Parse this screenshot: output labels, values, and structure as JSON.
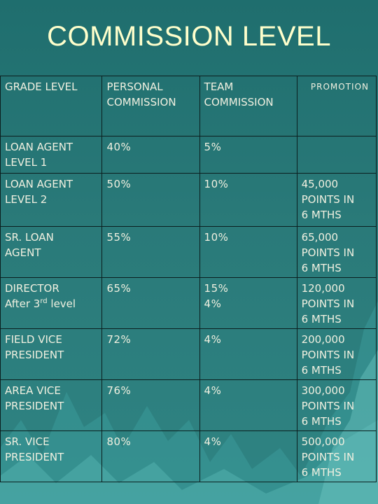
{
  "title": "COMMISSION LEVEL",
  "headers": {
    "grade": "GRADE LEVEL",
    "personal_1": "PERSONAL",
    "personal_2": "COMMISSION",
    "team_1": "TEAM",
    "team_2": "COMMISSION",
    "promotion": "PROMOTION"
  },
  "rows": [
    {
      "grade_1": "LOAN AGENT",
      "grade_2": "LEVEL 1",
      "personal": "40%",
      "team_1": "5%",
      "team_2": "",
      "promo_1": "",
      "promo_2": "",
      "promo_3": ""
    },
    {
      "grade_1": "LOAN AGENT",
      "grade_2": "LEVEL 2",
      "personal": "50%",
      "team_1": "10%",
      "team_2": "",
      "promo_1": "45,000",
      "promo_2": "POINTS IN",
      "promo_3": "6 MTHS"
    },
    {
      "grade_1": "SR. LOAN",
      "grade_2": "AGENT",
      "personal": "55%",
      "team_1": "10%",
      "team_2": "",
      "promo_1": "65,000",
      "promo_2": "POINTS IN",
      "promo_3": "6 MTHS"
    },
    {
      "grade_1": "DIRECTOR",
      "grade_2": "After 3",
      "grade_2_sup": "rd",
      "grade_2_tail": " level",
      "personal": "65%",
      "team_1": "15%",
      "team_2": "4%",
      "promo_1": "120,000",
      "promo_2": "POINTS IN",
      "promo_3": "6 MTHS"
    },
    {
      "grade_1": "FIELD VICE",
      "grade_2": "PRESIDENT",
      "personal": "72%",
      "team_1": "4%",
      "team_2": "",
      "promo_1": "200,000",
      "promo_2": "POINTS IN",
      "promo_3": "6 MTHS"
    },
    {
      "grade_1": "AREA VICE",
      "grade_2": "PRESIDENT",
      "personal": "76%",
      "team_1": "4%",
      "team_2": "",
      "promo_1": "300,000",
      "promo_2": "POINTS IN",
      "promo_3": "6 MTHS"
    },
    {
      "grade_1": "SR. VICE",
      "grade_2": "PRESIDENT",
      "personal": "80%",
      "team_1": "4%",
      "team_2": "",
      "promo_1": "500,000",
      "promo_2": "POINTS IN",
      "promo_3": "6 MTHS"
    }
  ],
  "colors": {
    "background": "#2a7a79",
    "title": "#ffffcc",
    "text": "#f0f0e0",
    "grid": "#0b1f1f",
    "mountains": "#3fa0a0"
  }
}
